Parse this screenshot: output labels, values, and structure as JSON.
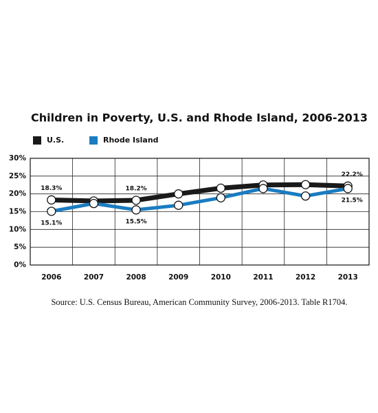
{
  "chart_data": {
    "type": "line",
    "title": "Children in Poverty, U.S. and Rhode Island, 2006-2013",
    "categories": [
      "2006",
      "2007",
      "2008",
      "2009",
      "2010",
      "2011",
      "2012",
      "2013"
    ],
    "series": [
      {
        "name": "U.S.",
        "color": "#1a1a1a",
        "values": [
          18.3,
          18.0,
          18.2,
          20.0,
          21.6,
          22.5,
          22.6,
          22.2
        ],
        "value_labels": [
          "18.3%",
          null,
          "18.2%",
          null,
          null,
          null,
          null,
          "22.2%"
        ]
      },
      {
        "name": "Rhode Island",
        "color": "#1a7cc1",
        "values": [
          15.1,
          17.3,
          15.5,
          16.8,
          18.9,
          21.5,
          19.4,
          21.5
        ],
        "value_labels": [
          "15.1%",
          null,
          "15.5%",
          null,
          null,
          null,
          null,
          "21.5%"
        ]
      }
    ],
    "ylim": [
      0,
      30
    ],
    "yticks": [
      {
        "value": 0,
        "label": "0%"
      },
      {
        "value": 5,
        "label": "5%"
      },
      {
        "value": 10,
        "label": "10%"
      },
      {
        "value": 15,
        "label": "15%"
      },
      {
        "value": 20,
        "label": "20%"
      },
      {
        "value": 25,
        "label": "25%"
      },
      {
        "value": 30,
        "label": "30%"
      }
    ],
    "grid": true,
    "legend": "top-left",
    "source": "Source: U.S. Census Bureau, American Community Survey, 2006-2013. Table R1704."
  }
}
